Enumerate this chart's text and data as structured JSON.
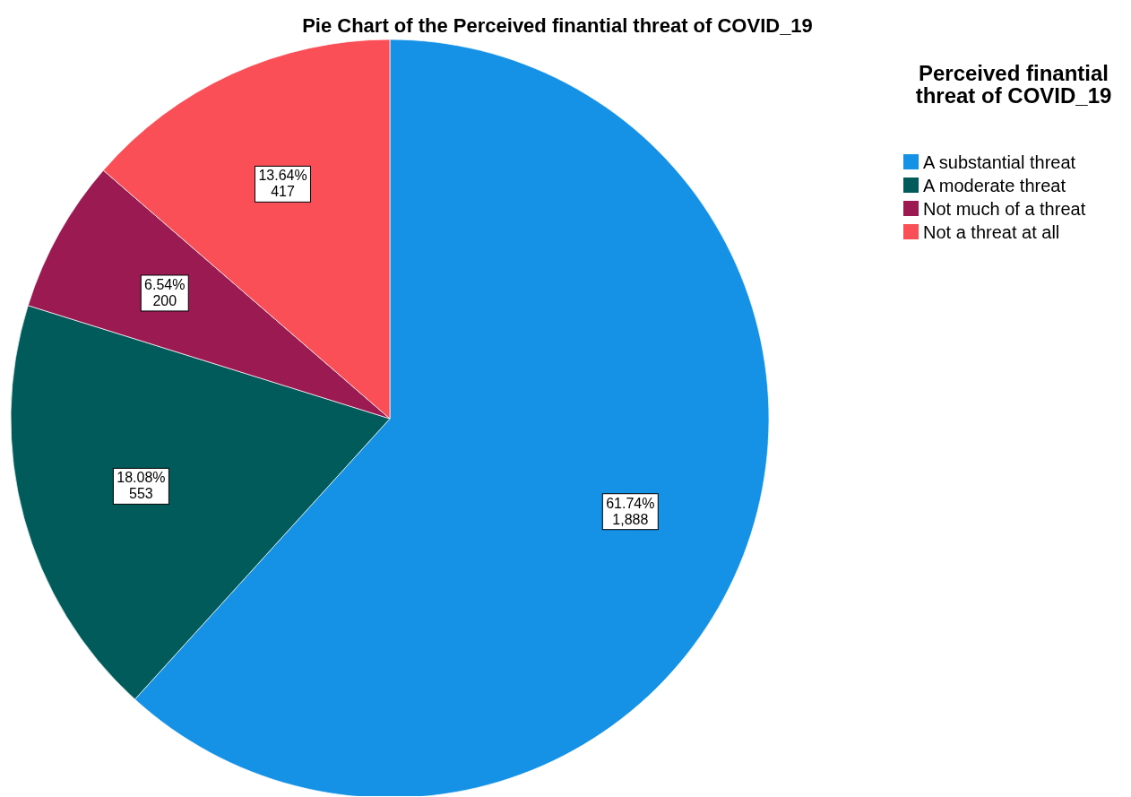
{
  "chart_data": {
    "type": "pie",
    "title": "Pie Chart of the Perceived finantial threat of COVID_19",
    "legend_title": "Perceived finantial threat of COVID_19",
    "legend": "top right",
    "categories": [
      "A substantial threat",
      "A moderate threat",
      "Not much of a threat",
      "Not a threat at all"
    ],
    "values": [
      1888,
      553,
      200,
      417
    ],
    "value_labels": [
      "61.74%\n1,888",
      "18.08%\n553",
      "6.54%\n200",
      "13.64%\n417"
    ],
    "colors": [
      "#1591e6",
      "#015b5b",
      "#9b1a52",
      "#fb4f58"
    ]
  }
}
